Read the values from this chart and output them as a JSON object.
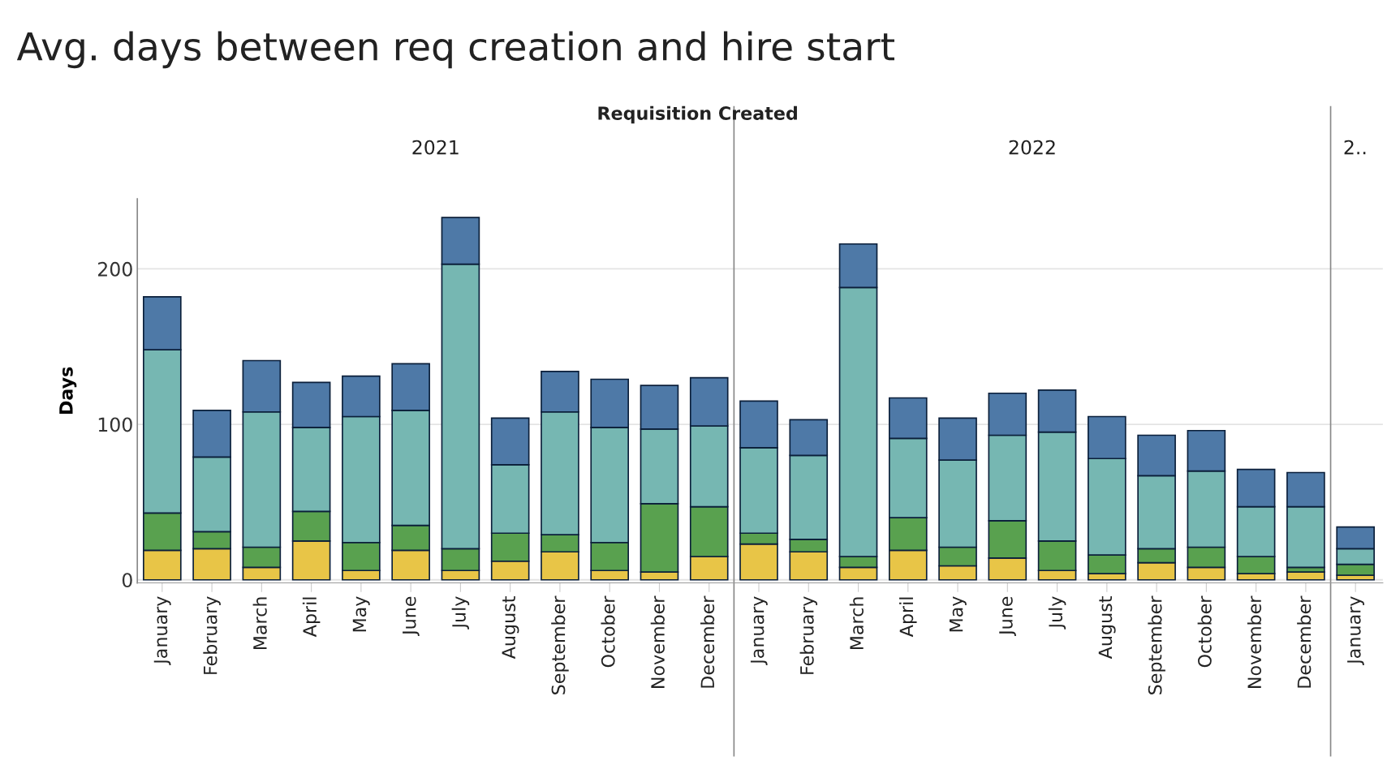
{
  "chart_data": {
    "type": "bar",
    "stacked": true,
    "title": "Avg. days between req creation and hire start",
    "x2label": "Requisition Created",
    "ylabel": "Days",
    "annotations": [
      "2021",
      "2022",
      "2.."
    ],
    "categories": [
      "January",
      "February",
      "March",
      "April",
      "May",
      "June",
      "July",
      "August",
      "September",
      "October",
      "November",
      "December",
      "January",
      "February",
      "March",
      "April",
      "May",
      "June",
      "July",
      "August",
      "September",
      "October",
      "November",
      "December",
      "January"
    ],
    "series": [
      {
        "color": "#e8c547",
        "values": [
          19,
          20,
          8,
          25,
          6,
          19,
          6,
          12,
          18,
          6,
          5,
          15,
          23,
          18,
          8,
          19,
          9,
          14,
          6,
          4,
          11,
          8,
          4,
          5,
          3
        ]
      },
      {
        "color": "#59a14f",
        "values": [
          24,
          11,
          13,
          19,
          18,
          16,
          14,
          18,
          11,
          18,
          44,
          32,
          7,
          8,
          7,
          21,
          12,
          24,
          19,
          12,
          9,
          13,
          11,
          3,
          7
        ]
      },
      {
        "color": "#76b7b2",
        "values": [
          105,
          48,
          87,
          54,
          81,
          74,
          183,
          44,
          79,
          74,
          48,
          52,
          55,
          54,
          173,
          51,
          56,
          55,
          70,
          62,
          47,
          49,
          32,
          39,
          10
        ]
      },
      {
        "color": "#4e79a7",
        "values": [
          34,
          30,
          33,
          29,
          26,
          30,
          30,
          30,
          26,
          31,
          28,
          31,
          30,
          23,
          28,
          26,
          27,
          27,
          27,
          27,
          26,
          26,
          24,
          22,
          14
        ]
      }
    ],
    "ylim": [
      -2,
      245
    ],
    "yticks": [
      0,
      100,
      200
    ],
    "grid": "y",
    "legend": false
  }
}
